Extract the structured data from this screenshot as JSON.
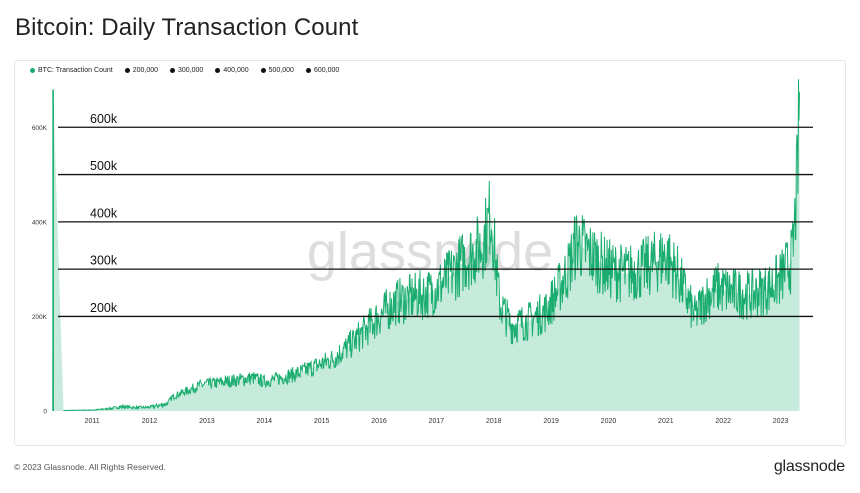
{
  "page": {
    "title": "Bitcoin: Daily Transaction Count",
    "footer": "© 2023 Glassnode. All Rights Reserved.",
    "brand": "glassnode",
    "watermark": "glassnode"
  },
  "colors": {
    "series": "#1aad6f",
    "reference": "#111111",
    "axis_text": "#333333"
  },
  "legend": [
    {
      "label": "BTC: Transaction Count",
      "color": "#1aad6f"
    },
    {
      "label": "200,000",
      "color": "#111111"
    },
    {
      "label": "300,000",
      "color": "#111111"
    },
    {
      "label": "400,000",
      "color": "#111111"
    },
    {
      "label": "500,000",
      "color": "#111111"
    },
    {
      "label": "600,000",
      "color": "#111111"
    }
  ],
  "chart_data": {
    "type": "area",
    "title": "Bitcoin: Daily Transaction Count",
    "xlim": [
      2010.3,
      2023.6
    ],
    "ylim": [
      0,
      700000
    ],
    "yticks": [
      {
        "value": 0,
        "label": "0"
      },
      {
        "value": 200000,
        "label": "200K"
      },
      {
        "value": 400000,
        "label": "400K"
      },
      {
        "value": 600000,
        "label": "600K"
      }
    ],
    "xticks": [
      {
        "value": 2011,
        "label": "2011"
      },
      {
        "value": 2012,
        "label": "2012"
      },
      {
        "value": 2013,
        "label": "2013"
      },
      {
        "value": 2014,
        "label": "2014"
      },
      {
        "value": 2015,
        "label": "2015"
      },
      {
        "value": 2016,
        "label": "2016"
      },
      {
        "value": 2017,
        "label": "2017"
      },
      {
        "value": 2018,
        "label": "2018"
      },
      {
        "value": 2019,
        "label": "2019"
      },
      {
        "value": 2020,
        "label": "2020"
      },
      {
        "value": 2021,
        "label": "2021"
      },
      {
        "value": 2022,
        "label": "2022"
      },
      {
        "value": 2023,
        "label": "2023"
      }
    ],
    "reference_lines": [
      {
        "value": 200000,
        "label": "200k"
      },
      {
        "value": 300000,
        "label": "300k"
      },
      {
        "value": 400000,
        "label": "400k"
      },
      {
        "value": 500000,
        "label": "500k"
      },
      {
        "value": 600000,
        "label": "600k"
      }
    ],
    "series": [
      {
        "name": "BTC: Transaction Count",
        "x": [
          2010.3,
          2010.32,
          2010.5,
          2011.0,
          2011.3,
          2011.5,
          2011.8,
          2012.0,
          2012.3,
          2012.4,
          2012.6,
          2012.9,
          2013.2,
          2013.5,
          2013.8,
          2014.0,
          2014.3,
          2014.6,
          2014.9,
          2015.2,
          2015.5,
          2015.8,
          2016.0,
          2016.3,
          2016.6,
          2016.9,
          2017.2,
          2017.5,
          2017.8,
          2017.95,
          2018.1,
          2018.3,
          2018.6,
          2018.9,
          2019.1,
          2019.3,
          2019.45,
          2019.6,
          2019.8,
          2020.0,
          2020.3,
          2020.6,
          2020.9,
          2021.0,
          2021.2,
          2021.4,
          2021.5,
          2021.7,
          2021.9,
          2022.2,
          2022.5,
          2022.8,
          2023.0,
          2023.1,
          2023.2,
          2023.25,
          2023.3,
          2023.33
        ],
        "values": [
          0,
          680000,
          1000,
          2000,
          5000,
          9000,
          7000,
          8000,
          15000,
          30000,
          40000,
          55000,
          60000,
          65000,
          70000,
          62000,
          70000,
          80000,
          95000,
          110000,
          140000,
          175000,
          200000,
          230000,
          240000,
          250000,
          280000,
          320000,
          350000,
          420000,
          230000,
          180000,
          190000,
          210000,
          250000,
          300000,
          360000,
          340000,
          320000,
          300000,
          290000,
          300000,
          320000,
          330000,
          290000,
          230000,
          200000,
          240000,
          260000,
          250000,
          245000,
          260000,
          280000,
          300000,
          320000,
          400000,
          520000,
          680000
        ]
      }
    ]
  }
}
